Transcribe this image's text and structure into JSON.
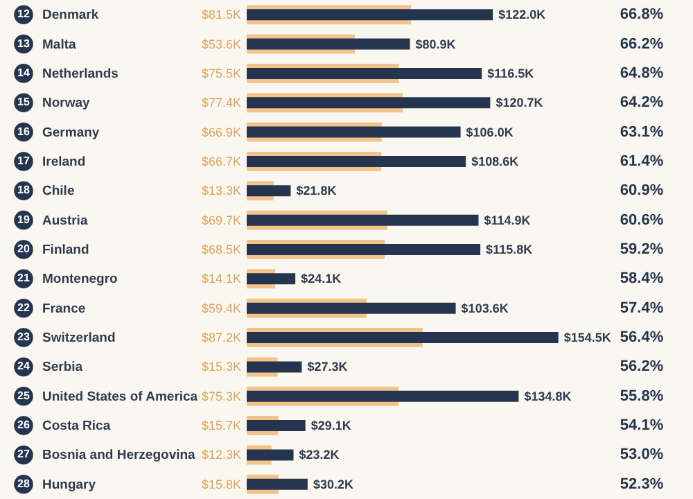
{
  "chart_data": {
    "type": "bar",
    "orientation": "horizontal",
    "data_labels": true,
    "categories": [
      "Denmark",
      "Malta",
      "Netherlands",
      "Norway",
      "Germany",
      "Ireland",
      "Chile",
      "Austria",
      "Finland",
      "Montenegro",
      "France",
      "Switzerland",
      "Serbia",
      "United States of America",
      "Costa Rica",
      "Bosnia and Herzegovina",
      "Hungary"
    ],
    "series": [
      {
        "color": "#f2c48c",
        "values": [
          81.5,
          53.6,
          75.5,
          77.4,
          66.9,
          66.7,
          13.3,
          69.7,
          68.5,
          14.1,
          59.4,
          87.2,
          15.3,
          75.3,
          15.7,
          12.3,
          15.8
        ],
        "value_labels": [
          "$81.5K",
          "$53.6K",
          "$75.5K",
          "$77.4K",
          "$66.9K",
          "$66.7K",
          "$13.3K",
          "$69.7K",
          "$68.5K",
          "$14.1K",
          "$59.4K",
          "$87.2K",
          "$15.3K",
          "$75.3K",
          "$15.7K",
          "$12.3K",
          "$15.8K"
        ]
      },
      {
        "color": "#26354f",
        "values": [
          122.0,
          80.9,
          116.5,
          120.7,
          106.0,
          108.6,
          21.8,
          114.9,
          115.8,
          24.1,
          103.6,
          154.5,
          27.3,
          134.8,
          29.1,
          23.2,
          30.2
        ],
        "value_labels": [
          "$122.0K",
          "$80.9K",
          "$116.5K",
          "$120.7K",
          "$106.0K",
          "$108.6K",
          "$21.8K",
          "$114.9K",
          "$115.8K",
          "$24.1K",
          "$103.6K",
          "$154.5K",
          "$27.3K",
          "$134.8K",
          "$29.1K",
          "$23.2K",
          "$30.2K"
        ]
      }
    ],
    "annotations": [
      "12",
      "13",
      "14",
      "15",
      "16",
      "17",
      "18",
      "19",
      "20",
      "21",
      "22",
      "23",
      "24",
      "25",
      "26",
      "27",
      "28",
      "66.8%",
      "66.2%",
      "64.8%",
      "64.2%",
      "63.1%",
      "61.4%",
      "60.9%",
      "60.6%",
      "59.2%",
      "58.4%",
      "57.4%",
      "56.4%",
      "56.2%",
      "55.8%",
      "54.1%",
      "53.0%",
      "52.3%"
    ]
  }
}
